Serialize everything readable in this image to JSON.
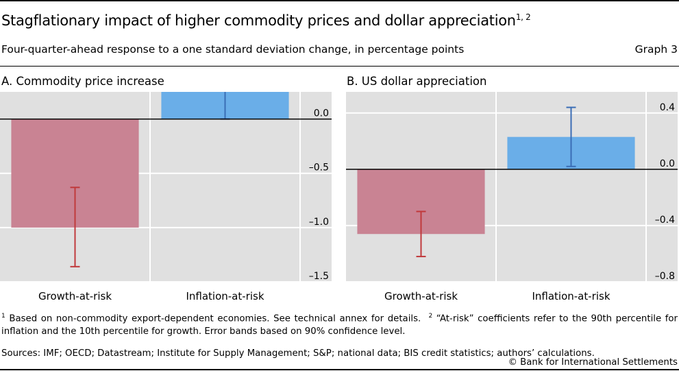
{
  "header": {
    "title": "Stagflationary impact of higher commodity prices and dollar appreciation",
    "title_superscript": "1, 2",
    "subtitle": "Four-quarter-ahead response to a one standard deviation change, in percentage points",
    "graph_number": "Graph 3"
  },
  "colors": {
    "growth_bar": "#c98393",
    "growth_error": "#c0393b",
    "inflation_bar": "#6aaee8",
    "inflation_error": "#3a6db5",
    "plot_bg": "#e0e0e0",
    "gridline": "#ffffff"
  },
  "chart_data": [
    {
      "type": "bar",
      "title": "A. Commodity price increase",
      "categories": [
        "Growth-at-risk",
        "Inflation-at-risk"
      ],
      "values": [
        -1.0,
        0.25
      ],
      "error_low": [
        -1.36,
        0.0
      ],
      "error_high": [
        -0.63,
        0.5
      ],
      "ylim": [
        -1.5,
        0.25
      ],
      "yticks": [
        0.0,
        -0.5,
        -1.0,
        -1.5
      ],
      "ytick_labels": [
        "0.0",
        "–0.5",
        "–1.0",
        "–1.5"
      ],
      "y_axis_side": "right",
      "grid": true,
      "xlabel": "",
      "ylabel": ""
    },
    {
      "type": "bar",
      "title": "B. US dollar appreciation",
      "categories": [
        "Growth-at-risk",
        "Inflation-at-risk"
      ],
      "values": [
        -0.46,
        0.23
      ],
      "error_low": [
        -0.62,
        0.02
      ],
      "error_high": [
        -0.3,
        0.44
      ],
      "ylim": [
        -0.8,
        0.55
      ],
      "yticks": [
        0.4,
        0.0,
        -0.4,
        -0.8
      ],
      "ytick_labels": [
        "0.4",
        "0.0",
        "–0.4",
        "–0.8"
      ],
      "y_axis_side": "right",
      "grid": true,
      "xlabel": "",
      "ylabel": ""
    }
  ],
  "footnotes": {
    "n1_marker": "1",
    "n1_text": "Based on non-commodity export-dependent economies. See technical annex for details.",
    "n2_marker": "2",
    "n2_text": "“At-risk” coefficients refer to the 90th percentile for inflation and the 10th percentile for growth. Error bands based on 90% confidence level."
  },
  "sources": "Sources: IMF; OECD; Datastream; Institute for Supply Management; S&P; national data; BIS credit statistics; authors’ calculations.",
  "copyright": "© Bank for International Settlements"
}
